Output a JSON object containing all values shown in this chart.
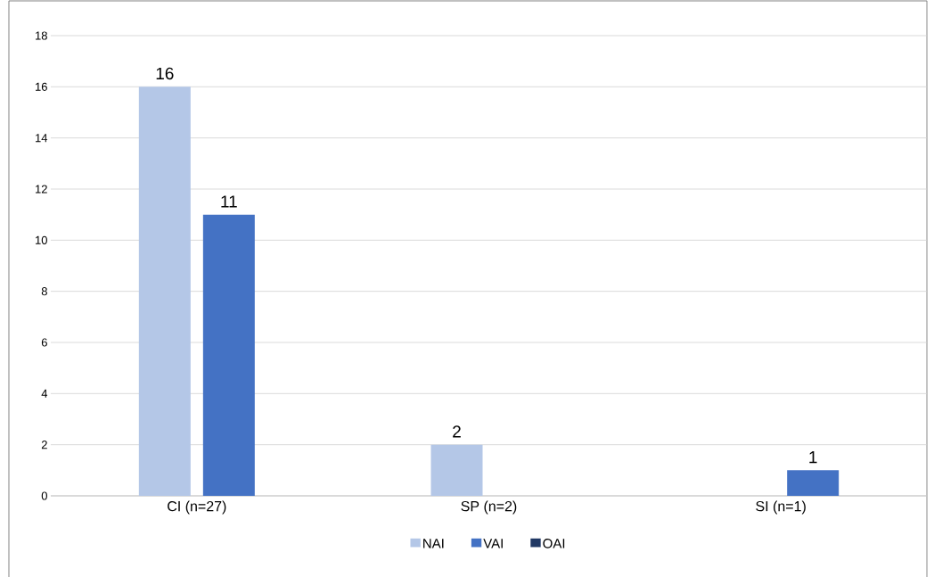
{
  "chart_data": {
    "type": "bar",
    "categories": [
      "CI (n=27)",
      "SP (n=2)",
      "SI (n=1)"
    ],
    "series": [
      {
        "name": "NAI",
        "color": "#b4c7e7",
        "values": [
          16,
          2,
          null
        ],
        "value_labels": [
          "16",
          "2",
          null
        ]
      },
      {
        "name": "VAI",
        "color": "#4472c4",
        "values": [
          11,
          null,
          1
        ],
        "value_labels": [
          "11",
          null,
          "1"
        ]
      },
      {
        "name": "OAI",
        "color": "#203864",
        "values": [
          null,
          null,
          null
        ],
        "value_labels": [
          null,
          null,
          null
        ]
      }
    ],
    "ylim": [
      0,
      18
    ],
    "yticks": [
      0,
      2,
      4,
      6,
      8,
      10,
      12,
      14,
      16,
      18
    ],
    "grid": "y",
    "legend": "bottom"
  }
}
